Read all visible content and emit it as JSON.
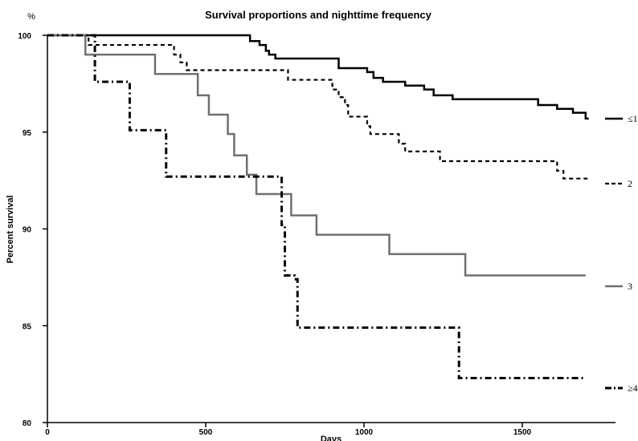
{
  "chart_data": {
    "type": "line",
    "title": "Survival proportions and nighttime frequency",
    "xlabel": "Days",
    "ylabel": "Percent survival",
    "y_unit": "%",
    "xlim": [
      0,
      1800
    ],
    "ylim": [
      80,
      100
    ],
    "x_ticks": [
      0,
      500,
      1000,
      1500
    ],
    "y_ticks": [
      80,
      85,
      90,
      95,
      100
    ],
    "legend_placement": "right, beside line ends",
    "grid": false,
    "series": [
      {
        "name": "≤1",
        "color": "#000000",
        "style": "solid",
        "steps": [
          [
            0,
            100
          ],
          [
            620,
            100
          ],
          [
            640,
            99.7
          ],
          [
            670,
            99.5
          ],
          [
            690,
            99.2
          ],
          [
            700,
            99.0
          ],
          [
            720,
            98.8
          ],
          [
            920,
            98.3
          ],
          [
            1010,
            98.1
          ],
          [
            1030,
            97.8
          ],
          [
            1060,
            97.6
          ],
          [
            1130,
            97.4
          ],
          [
            1190,
            97.2
          ],
          [
            1220,
            96.9
          ],
          [
            1280,
            96.7
          ],
          [
            1550,
            96.4
          ],
          [
            1610,
            96.2
          ],
          [
            1660,
            96.0
          ],
          [
            1700,
            95.7
          ],
          [
            1710,
            95.7
          ]
        ]
      },
      {
        "name": "2",
        "color": "#000000",
        "style": "dashed",
        "steps": [
          [
            0,
            100
          ],
          [
            130,
            99.5
          ],
          [
            400,
            99.0
          ],
          [
            420,
            98.6
          ],
          [
            440,
            98.2
          ],
          [
            760,
            97.7
          ],
          [
            900,
            97.2
          ],
          [
            920,
            96.8
          ],
          [
            940,
            96.4
          ],
          [
            950,
            95.8
          ],
          [
            1010,
            95.3
          ],
          [
            1020,
            94.9
          ],
          [
            1110,
            94.4
          ],
          [
            1130,
            94.0
          ],
          [
            1240,
            93.5
          ],
          [
            1610,
            93.0
          ],
          [
            1630,
            92.6
          ],
          [
            1710,
            92.6
          ]
        ]
      },
      {
        "name": "3",
        "color": "#707070",
        "style": "solid",
        "steps": [
          [
            0,
            100
          ],
          [
            120,
            99.0
          ],
          [
            340,
            98.0
          ],
          [
            475,
            96.9
          ],
          [
            510,
            95.9
          ],
          [
            570,
            94.9
          ],
          [
            590,
            93.8
          ],
          [
            630,
            92.8
          ],
          [
            660,
            91.8
          ],
          [
            770,
            90.7
          ],
          [
            850,
            89.7
          ],
          [
            1080,
            88.7
          ],
          [
            1320,
            87.6
          ],
          [
            1700,
            87.6
          ]
        ]
      },
      {
        "name": "≥4",
        "color": "#000000",
        "style": "dashdot",
        "steps": [
          [
            0,
            100
          ],
          [
            150,
            97.6
          ],
          [
            260,
            95.1
          ],
          [
            375,
            92.7
          ],
          [
            740,
            90.2
          ],
          [
            750,
            87.6
          ],
          [
            780,
            87.4
          ],
          [
            790,
            84.9
          ],
          [
            1300,
            82.3
          ],
          [
            1700,
            82.3
          ]
        ]
      }
    ]
  }
}
